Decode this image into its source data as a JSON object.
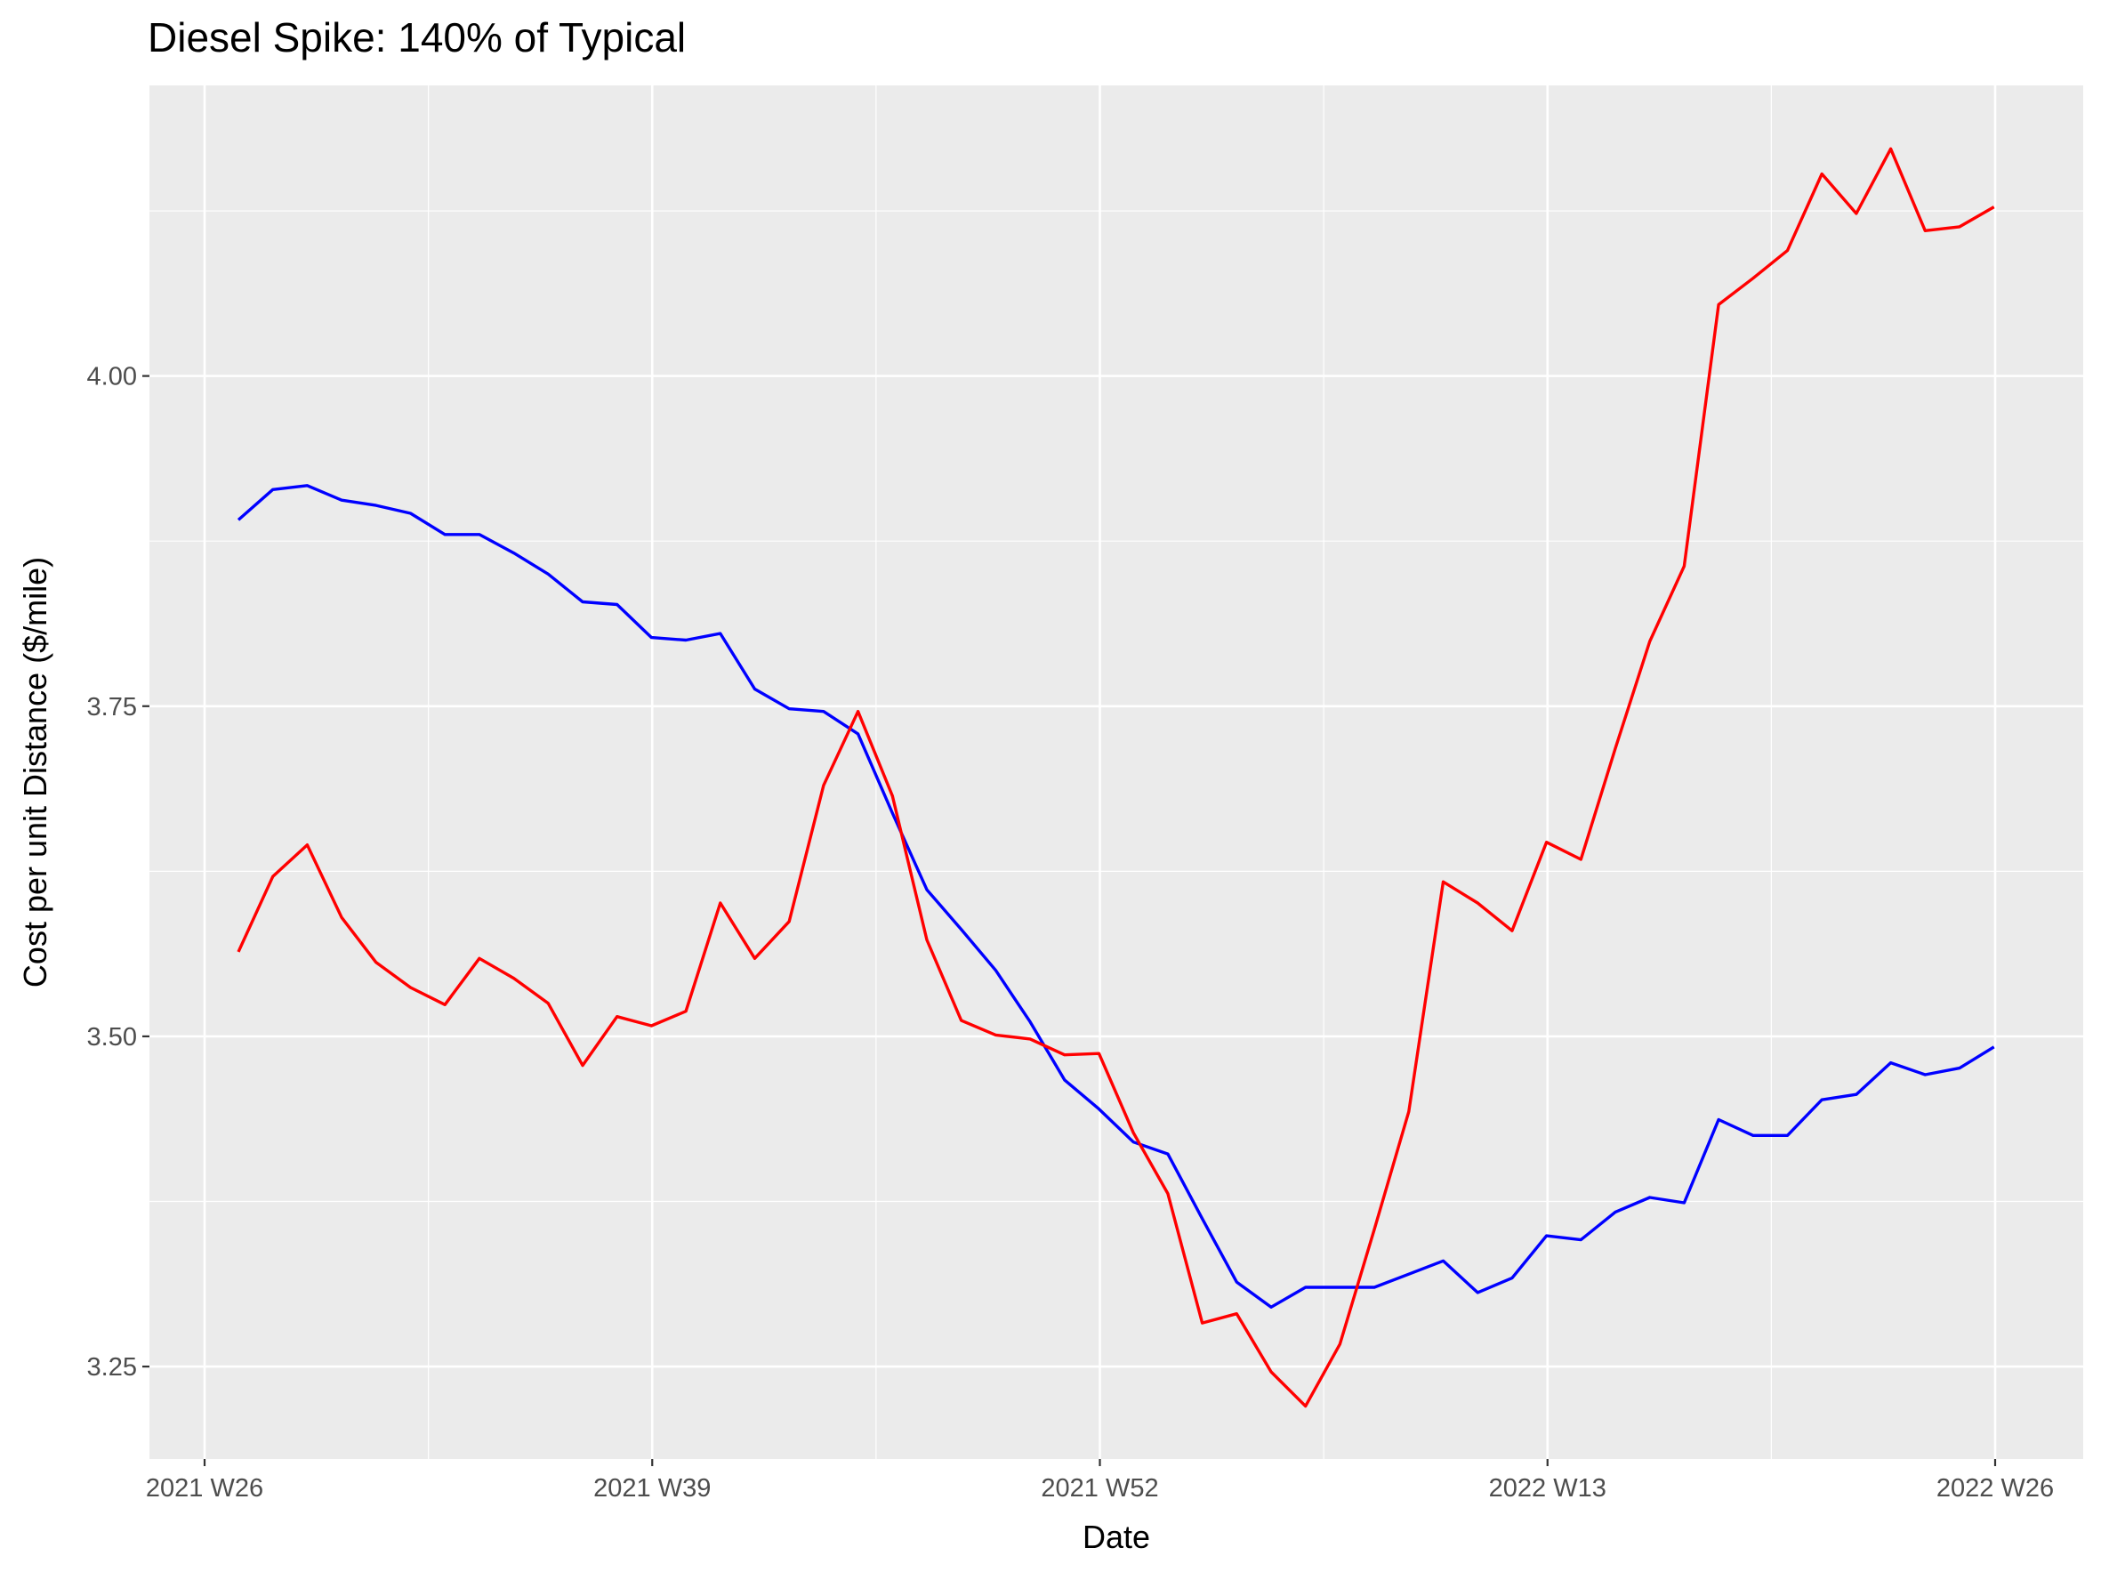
{
  "chart_data": {
    "type": "line",
    "title": "Diesel Spike: 140% of Typical",
    "xlabel": "Date",
    "ylabel": "Cost per unit Distance ($/mile)",
    "x_tick_labels": [
      "2021 W26",
      "2021 W39",
      "2021 W52",
      "2022 W13",
      "2022 W26"
    ],
    "y_ticks": [
      3.25,
      3.5,
      3.75,
      4.0
    ],
    "y_tick_labels": [
      "3.25",
      "3.50",
      "3.75",
      "4.00"
    ],
    "ylim": [
      3.18,
      4.22
    ],
    "x": [
      "2021 W27",
      "2021 W28",
      "2021 W29",
      "2021 W30",
      "2021 W31",
      "2021 W32",
      "2021 W33",
      "2021 W34",
      "2021 W35",
      "2021 W36",
      "2021 W37",
      "2021 W38",
      "2021 W39",
      "2021 W40",
      "2021 W41",
      "2021 W42",
      "2021 W43",
      "2021 W44",
      "2021 W45",
      "2021 W46",
      "2021 W47",
      "2021 W48",
      "2021 W49",
      "2021 W50",
      "2021 W51",
      "2021 W52",
      "2022 W01",
      "2022 W02",
      "2022 W03",
      "2022 W04",
      "2022 W05",
      "2022 W06",
      "2022 W07",
      "2022 W08",
      "2022 W09",
      "2022 W10",
      "2022 W11",
      "2022 W12",
      "2022 W13",
      "2022 W14",
      "2022 W15",
      "2022 W16",
      "2022 W17",
      "2022 W18",
      "2022 W19",
      "2022 W20",
      "2022 W21",
      "2022 W22",
      "2022 W23",
      "2022 W24",
      "2022 W25",
      "2022 W26"
    ],
    "grid": true,
    "legend": "none",
    "series": [
      {
        "color": "#0000ff",
        "values": [
          3.891,
          3.914,
          3.917,
          3.906,
          3.902,
          3.896,
          3.88,
          3.88,
          3.866,
          3.85,
          3.829,
          3.827,
          3.802,
          3.8,
          3.805,
          3.763,
          3.748,
          3.746,
          3.729,
          3.669,
          3.611,
          3.581,
          3.55,
          3.511,
          3.467,
          3.445,
          3.42,
          3.411,
          3.362,
          3.314,
          3.295,
          3.31,
          3.31,
          3.31,
          3.32,
          3.33,
          3.306,
          3.317,
          3.349,
          3.346,
          3.367,
          3.378,
          3.374,
          3.437,
          3.425,
          3.425,
          3.452,
          3.456,
          3.48,
          3.471,
          3.476,
          3.492
        ]
      },
      {
        "color": "#ff0000",
        "values": [
          3.564,
          3.621,
          3.645,
          3.59,
          3.556,
          3.537,
          3.524,
          3.559,
          3.544,
          3.525,
          3.478,
          3.515,
          3.508,
          3.519,
          3.601,
          3.559,
          3.587,
          3.69,
          3.746,
          3.682,
          3.573,
          3.512,
          3.501,
          3.498,
          3.486,
          3.487,
          3.427,
          3.381,
          3.283,
          3.29,
          3.246,
          3.22,
          3.267,
          3.354,
          3.443,
          3.617,
          3.601,
          3.58,
          3.647,
          3.634,
          3.718,
          3.799,
          3.856,
          4.054,
          4.074,
          4.095,
          4.153,
          4.123,
          4.172,
          4.11,
          4.113,
          4.128
        ]
      }
    ]
  }
}
